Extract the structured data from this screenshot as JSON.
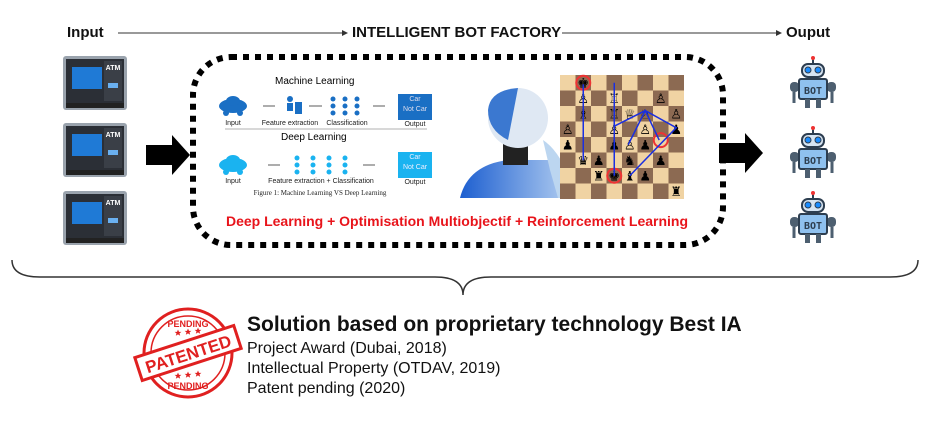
{
  "header": {
    "input": "Input",
    "title": "INTELLIGENT BOT FACTORY",
    "output": "Ouput"
  },
  "factory": {
    "ml_title": "Machine Learning",
    "dl_title": "Deep Learning",
    "ml_labels": [
      "Input",
      "Feature extraction",
      "Classification",
      "Output"
    ],
    "dl_labels": [
      "Input",
      "Feature extraction + Classification",
      "Output"
    ],
    "output_box": [
      "Car",
      "Not Car"
    ],
    "caption": "Figure 1: Machine Learning VS Deep Learning",
    "tagline": "Deep Learning + Optimisation Multiobjectif + Reinforcement Learning"
  },
  "inputs": [
    {
      "label": "ATM"
    },
    {
      "label": "ATM"
    },
    {
      "label": "ATM"
    }
  ],
  "outputs": [
    {
      "label": "BOT"
    },
    {
      "label": "BOT"
    },
    {
      "label": "BOT"
    }
  ],
  "stamp": {
    "top": "PENDING",
    "middle": "PATENTED",
    "bottom": "PENDING"
  },
  "solution": {
    "title": "Solution based on proprietary technology Best IA",
    "items": [
      "Project Award (Dubai, 2018)",
      "Intellectual Property (OTDAV, 2019)",
      "Patent pending (2020)"
    ]
  },
  "colors": {
    "accent_red": "#e8141b",
    "ml_blue": "#1a6fc4",
    "dl_blue": "#1ab3f0",
    "chess_light": "#f0d3a3",
    "chess_dark": "#8c6a52"
  }
}
